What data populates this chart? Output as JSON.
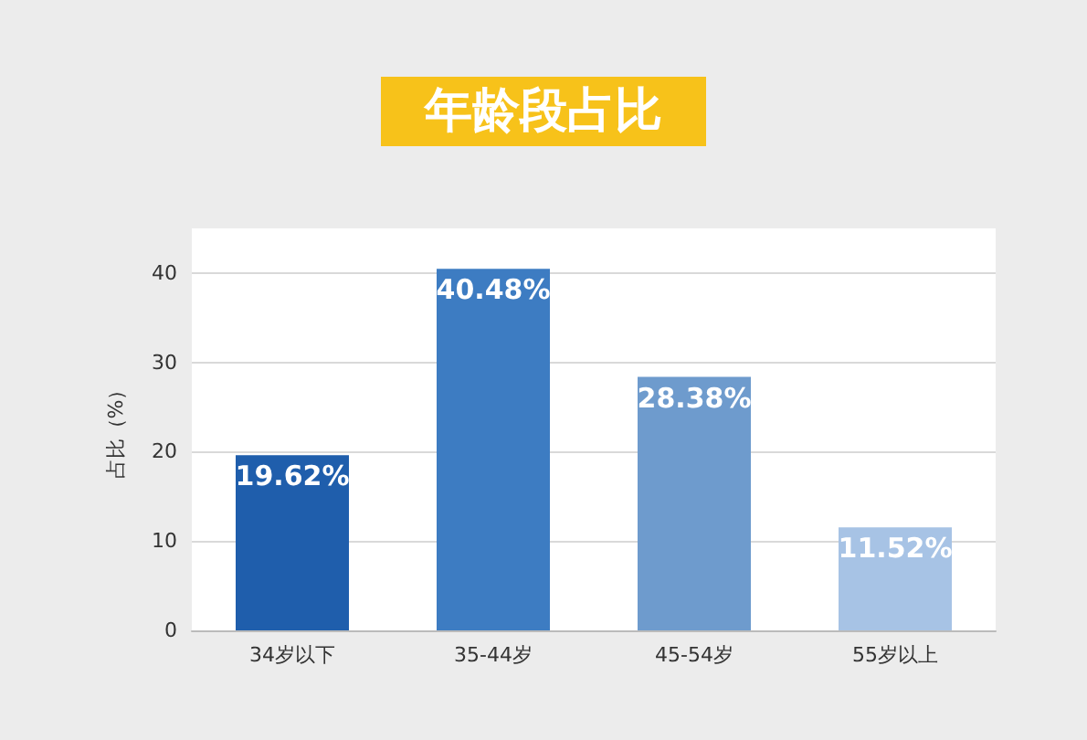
{
  "chart_data": {
    "type": "bar",
    "title": "年龄段占比",
    "ylabel": "占比（%）",
    "categories": [
      "34岁以下",
      "35-44岁",
      "45-54岁",
      "55岁以上"
    ],
    "values": [
      19.62,
      40.48,
      28.38,
      11.52
    ],
    "value_labels": [
      "19.62%",
      "40.48%",
      "28.38%",
      "11.52%"
    ],
    "colors": [
      "#1f5eac",
      "#3d7cc2",
      "#6e9bcd",
      "#a7c3e5"
    ],
    "ylim": [
      0,
      45
    ],
    "yticks": [
      0,
      10,
      20,
      30,
      40
    ],
    "grid": "y"
  }
}
